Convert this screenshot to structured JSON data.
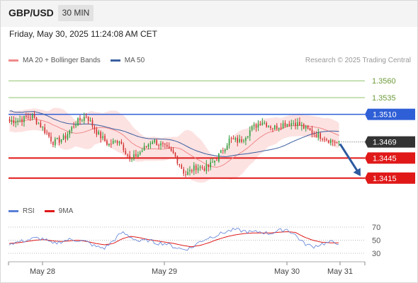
{
  "header": {
    "pair": "GBP/USD",
    "timeframe": "30 MIN",
    "datetime": "Friday, May 30, 2025 11:24:08 AM CET",
    "credit": "Research © 2025 Trading Central"
  },
  "legend": {
    "main": [
      {
        "label": "MA 20 + Bollinger Bands",
        "color": "#f08a8a"
      },
      {
        "label": "MA 50",
        "color": "#3a5fa0"
      }
    ],
    "rsi": [
      {
        "label": "RSI",
        "color": "#5b7fd6"
      },
      {
        "label": "9MA",
        "color": "#e01818"
      }
    ]
  },
  "colors": {
    "up_candle": "#2e9e3a",
    "down_candle": "#d23030",
    "bollinger_fill": "#fde2e2",
    "resistance_green": "#8fc46a",
    "pivot_blue": "#2f5fd6",
    "support_red": "#e01818",
    "last_price_bg": "#333333",
    "arrow": "#2d5aa0"
  },
  "chart_data": {
    "type": "candlestick",
    "instrument": "GBP/USD",
    "interval": "30 MIN",
    "x_tick_labels": [
      "May 28",
      "May 29",
      "May 30",
      "May 31"
    ],
    "y_range": [
      1.338,
      1.3575
    ],
    "last_price": 1.3469,
    "levels": [
      {
        "value": 1.356,
        "label": "1.3560",
        "kind": "resistance",
        "color": "#8fc46a"
      },
      {
        "value": 1.3535,
        "label": "1.3535",
        "kind": "resistance",
        "color": "#8fc46a"
      },
      {
        "value": 1.351,
        "label": "1.3510",
        "kind": "pivot",
        "color": "#2f5fd6"
      },
      {
        "value": 1.3445,
        "label": "1.3445",
        "kind": "support",
        "color": "#e01818"
      },
      {
        "value": 1.3415,
        "label": "1.3415",
        "kind": "support",
        "color": "#e01818"
      }
    ],
    "last_price_label": "1.3469",
    "forecast_arrow": {
      "from": 1.3466,
      "to": 1.3418
    },
    "close_anchors": [
      1.35,
      1.3502,
      1.3508,
      1.349,
      1.3468,
      1.3475,
      1.3497,
      1.3508,
      1.3482,
      1.3465,
      1.3472,
      1.3442,
      1.3455,
      1.3472,
      1.3462,
      1.345,
      1.342,
      1.3432,
      1.343,
      1.3447,
      1.3472,
      1.347,
      1.3488,
      1.35,
      1.349,
      1.3496,
      1.3498,
      1.3488,
      1.348,
      1.3473,
      1.3466
    ],
    "rsi": {
      "y_ticks": [
        70,
        50,
        30
      ],
      "rsi_anchors": [
        45,
        47,
        50,
        53,
        52,
        44,
        48,
        51,
        50,
        47,
        40,
        38,
        49,
        62,
        55,
        48,
        50,
        46,
        45,
        40,
        36,
        38,
        48,
        54,
        58,
        63,
        66,
        64,
        62,
        63,
        60,
        64,
        67,
        58,
        45,
        40,
        44,
        47,
        46
      ],
      "ma9_anchors": [
        45,
        46,
        48,
        50,
        51,
        49,
        48,
        49,
        50,
        48,
        45,
        43,
        45,
        52,
        56,
        54,
        51,
        49,
        47,
        45,
        42,
        40,
        42,
        46,
        51,
        55,
        58,
        60,
        61,
        61,
        61,
        62,
        63,
        62,
        55,
        50,
        47,
        46,
        46
      ]
    }
  }
}
